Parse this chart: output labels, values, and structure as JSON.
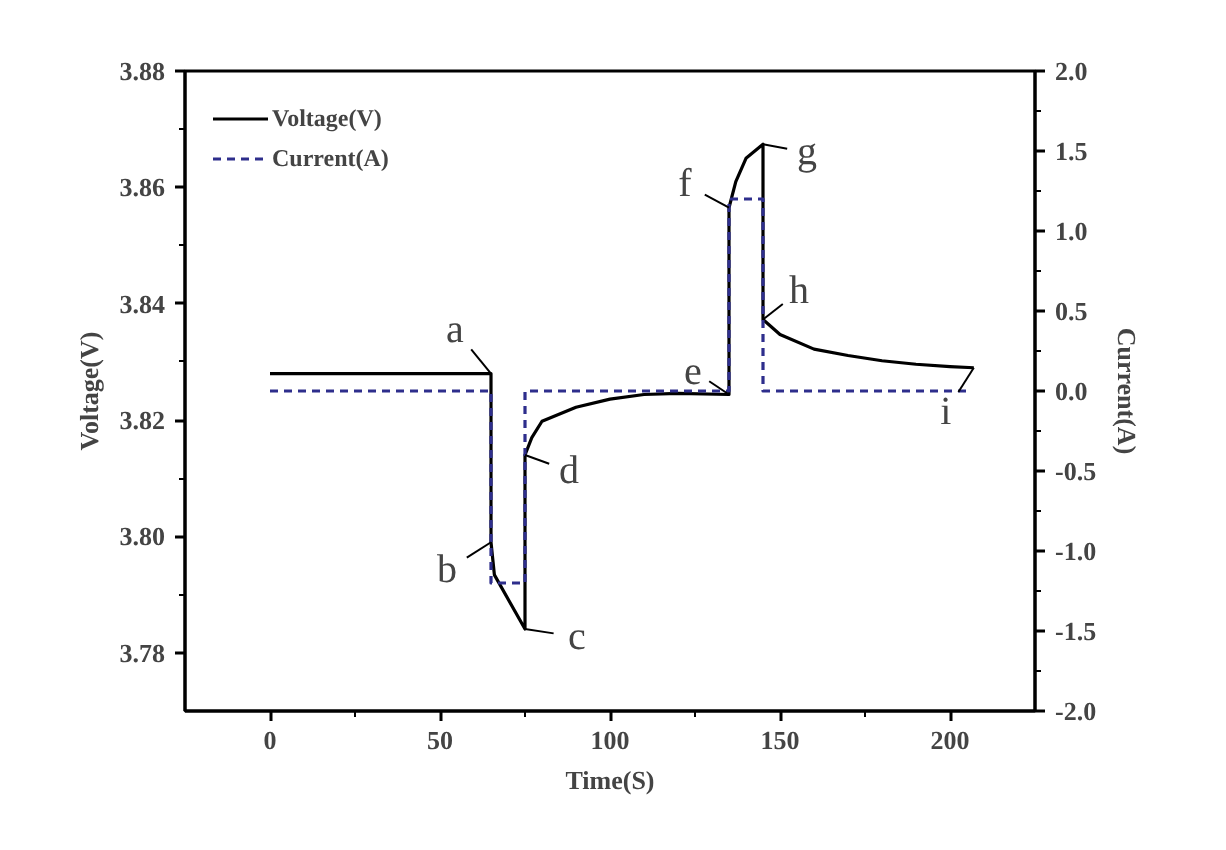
{
  "chart_data": {
    "type": "line",
    "xlabel": "Time(S)",
    "ylabel": "Voltage(V)",
    "y2label": "Current(A)",
    "xlim": [
      -25,
      225
    ],
    "xticks": [
      0,
      50,
      100,
      150,
      200
    ],
    "ylim": [
      3.77,
      3.88
    ],
    "yticks": [
      {
        "value": 3.78,
        "label": "3.78"
      },
      {
        "value": 3.8,
        "label": "3.80"
      },
      {
        "value": 3.82,
        "label": "3.82"
      },
      {
        "value": 3.84,
        "label": "3.84"
      },
      {
        "value": 3.86,
        "label": "3.86"
      },
      {
        "value": 3.88,
        "label": "3.88"
      }
    ],
    "y2lim": [
      -2.0,
      2.0
    ],
    "y2ticks": [
      {
        "value": -2,
        "label": "-2.0"
      },
      {
        "value": -1.5,
        "label": "-1.5"
      },
      {
        "value": -1,
        "label": "-1.0"
      },
      {
        "value": -0.5,
        "label": "-0.5"
      },
      {
        "value": 0,
        "label": "0.0"
      },
      {
        "value": 0.5,
        "label": "0.5"
      },
      {
        "value": 1,
        "label": "1.0"
      },
      {
        "value": 1.5,
        "label": "1.5"
      },
      {
        "value": 2,
        "label": "2.0"
      }
    ],
    "grid": false,
    "legend": "top left",
    "series": [
      {
        "name": "Voltage(V)",
        "color": "#000000",
        "line_style": "solid",
        "x": [
          0,
          65,
          65,
          66,
          75,
          75,
          77,
          80,
          85,
          90,
          100,
          110,
          120,
          135,
          135,
          137,
          140,
          145,
          145,
          150,
          160,
          170,
          180,
          190,
          200,
          207
        ],
        "values": [
          3.828,
          3.828,
          3.799,
          3.7934,
          3.7841,
          3.814,
          3.817,
          3.8198,
          3.821,
          3.8222,
          3.8236,
          3.8244,
          3.8246,
          3.8244,
          3.8565,
          3.861,
          3.865,
          3.8674,
          3.8373,
          3.8347,
          3.8322,
          3.8311,
          3.8302,
          3.8296,
          3.8292,
          3.829
        ]
      },
      {
        "name": "Current(A)",
        "color": "#2e2e8c",
        "line_style": "dashed",
        "axis": "y2",
        "x": [
          0,
          65,
          65,
          75,
          75,
          135,
          135,
          145,
          145,
          205
        ],
        "values": [
          0,
          0,
          -1.2,
          -1.2,
          0,
          0,
          1.2,
          1.2,
          0,
          0
        ]
      }
    ],
    "annotations": [
      {
        "text": "a",
        "x": 65,
        "y": 3.828
      },
      {
        "text": "b",
        "x": 65,
        "y": 3.799
      },
      {
        "text": "c",
        "x": 75,
        "y": 3.7841
      },
      {
        "text": "d",
        "x": 75,
        "y": 3.814
      },
      {
        "text": "e",
        "x": 135,
        "y": 3.8244
      },
      {
        "text": "f",
        "x": 135,
        "y": 3.8565
      },
      {
        "text": "g",
        "x": 145,
        "y": 3.8674
      },
      {
        "text": "h",
        "x": 145,
        "y": 3.8373
      },
      {
        "text": "i",
        "x": 207,
        "y": 3.829
      }
    ]
  }
}
